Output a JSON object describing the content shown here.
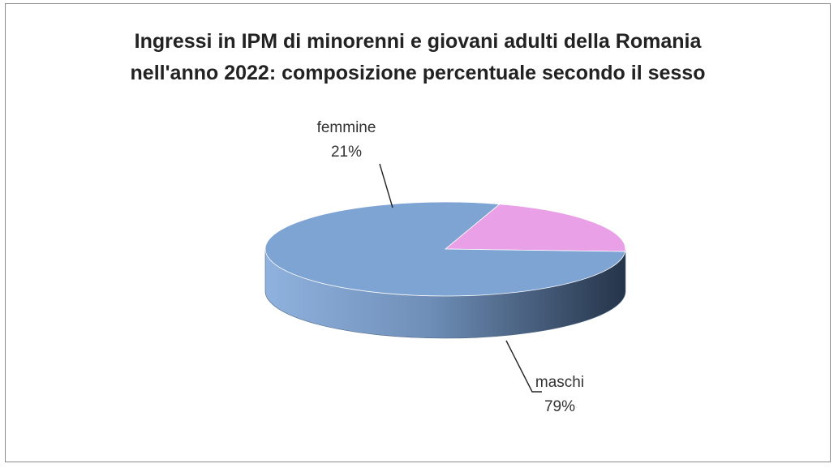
{
  "chart_data": {
    "type": "pie",
    "title": "Ingressi in IPM di minorenni e giovani adulti della Romania nell'anno 2022: composizione percentuale secondo il sesso",
    "title_lines": [
      "Ingressi in IPM di minorenni e giovani adulti della Romania",
      "nell'anno 2022: composizione percentuale secondo il sesso"
    ],
    "style": "3d",
    "categories": [
      "femmine",
      "maschi"
    ],
    "values": [
      21,
      79
    ],
    "labels": [
      {
        "name": "femmine",
        "pct": "21%"
      },
      {
        "name": "maschi",
        "pct": "79%"
      }
    ],
    "colors": {
      "femmine": "#e9a0e7",
      "maschi": "#7ea4d4",
      "maschi_side_light": "#8aaedc",
      "maschi_side_dark": "#2a3a52"
    },
    "legend": "none"
  }
}
